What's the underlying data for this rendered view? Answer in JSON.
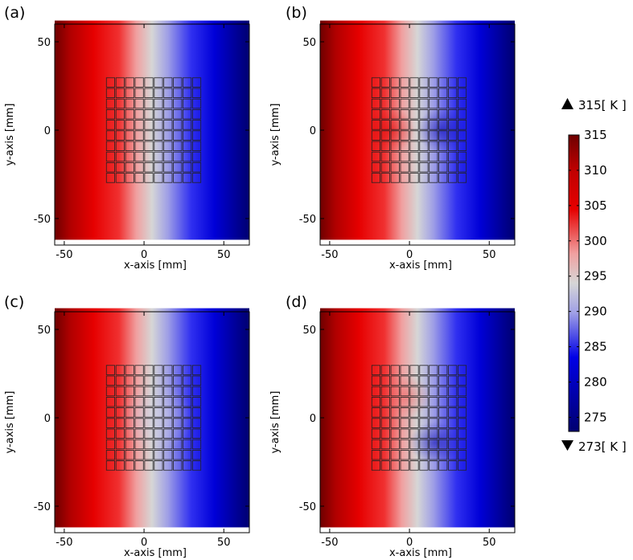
{
  "chart_data": {
    "type": "heatmap",
    "title": "",
    "xlabel": "x-axis [mm]",
    "ylabel": "y-axis [mm]",
    "xlim": [
      -56,
      66
    ],
    "ylim": [
      -62,
      62
    ],
    "plot_xlim": [
      -56,
      66
    ],
    "plot_ylim": [
      -65,
      60
    ],
    "x_ticks": [
      -50,
      0,
      50
    ],
    "y_ticks": [
      50,
      0,
      -50
    ],
    "tick_labels": {
      "x": [
        "-50",
        "0",
        "50"
      ],
      "y": [
        "50",
        "0",
        "-50"
      ]
    },
    "grid_region": {
      "x": [
        -24,
        36
      ],
      "y": [
        -30,
        30
      ],
      "cells_x": 10,
      "cells_y": 10
    },
    "colorbar": {
      "min": 273,
      "max": 315,
      "ticks": [
        315,
        310,
        305,
        300,
        295,
        290,
        285,
        280,
        275
      ],
      "tick_labels": [
        "315",
        "310",
        "305",
        "300",
        "295",
        "290",
        "285",
        "280",
        "275"
      ],
      "max_label": "315[ K ]",
      "min_label": "273[ K ]",
      "colors": [
        "#6e0000",
        "#e60000",
        "#f0a0a0",
        "#d6d6d6",
        "#a0a0e6",
        "#0000e6",
        "#000070"
      ]
    },
    "panels": [
      {
        "label": "(a)",
        "variant": "uniform"
      },
      {
        "label": "(b)",
        "variant": "enhanced"
      },
      {
        "label": "(c)",
        "variant": "cloak"
      },
      {
        "label": "(d)",
        "variant": "shifted"
      }
    ]
  }
}
